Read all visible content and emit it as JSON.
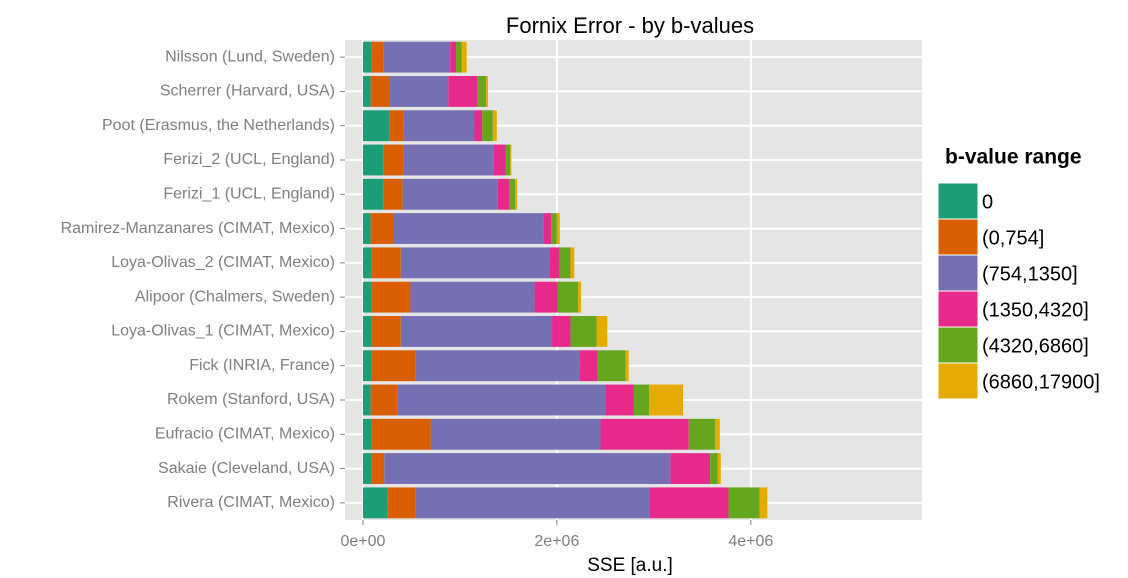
{
  "chart_data": {
    "type": "stacked-barh",
    "title": "Fornix Error - by b-values",
    "x_label": "SSE [a.u.]",
    "legend_title": "b-value range",
    "legend_position": "right",
    "grid": true,
    "categories": [
      "Nilsson (Lund, Sweden)",
      "Scherrer (Harvard, USA)",
      "Poot (Erasmus, the Netherlands)",
      "Ferizi_2 (UCL, England)",
      "Ferizi_1 (UCL, England)",
      "Ramirez-Manzanares (CIMAT, Mexico)",
      "Loya-Olivas_2 (CIMAT, Mexico)",
      "Alipoor (Chalmers, Sweden)",
      "Loya-Olivas_1 (CIMAT, Mexico)",
      "Fick (INRIA, France)",
      "Rokem (Stanford, USA)",
      "Eufracio (CIMAT, Mexico)",
      "Sakaie (Cleveland, USA)",
      "Rivera (CIMAT, Mexico)"
    ],
    "series": [
      {
        "name": "0",
        "color": "#1b9e77",
        "values": [
          90000,
          80000,
          270000,
          210000,
          210000,
          80000,
          90000,
          90000,
          90000,
          90000,
          80000,
          90000,
          90000,
          250000
        ]
      },
      {
        "name": "(0,754]",
        "color": "#d95f02",
        "values": [
          120000,
          200000,
          150000,
          210000,
          200000,
          230000,
          300000,
          400000,
          300000,
          450000,
          280000,
          610000,
          130000,
          290000
        ]
      },
      {
        "name": "(754,1350]",
        "color": "#7570b3",
        "values": [
          690000,
          600000,
          730000,
          930000,
          980000,
          1550000,
          1530000,
          1280000,
          1560000,
          1690000,
          2140000,
          1750000,
          2950000,
          2420000
        ]
      },
      {
        "name": "(1350,4320]",
        "color": "#e7298a",
        "values": [
          60000,
          300000,
          80000,
          120000,
          120000,
          80000,
          110000,
          240000,
          190000,
          190000,
          290000,
          910000,
          410000,
          810000
        ]
      },
      {
        "name": "(4320,6860]",
        "color": "#66a61e",
        "values": [
          60000,
          90000,
          110000,
          50000,
          60000,
          60000,
          110000,
          210000,
          270000,
          290000,
          160000,
          270000,
          80000,
          320000
        ]
      },
      {
        "name": "(6860,17900]",
        "color": "#e6ab02",
        "values": [
          50000,
          20000,
          40000,
          10000,
          20000,
          30000,
          40000,
          30000,
          110000,
          30000,
          350000,
          50000,
          30000,
          80000
        ]
      }
    ],
    "xlim": [
      -185000,
      5765000
    ],
    "xticks": [
      {
        "value": 0,
        "label": "0e+00"
      },
      {
        "value": 2000000,
        "label": "2e+06"
      },
      {
        "value": 4000000,
        "label": "4e+06"
      }
    ]
  }
}
